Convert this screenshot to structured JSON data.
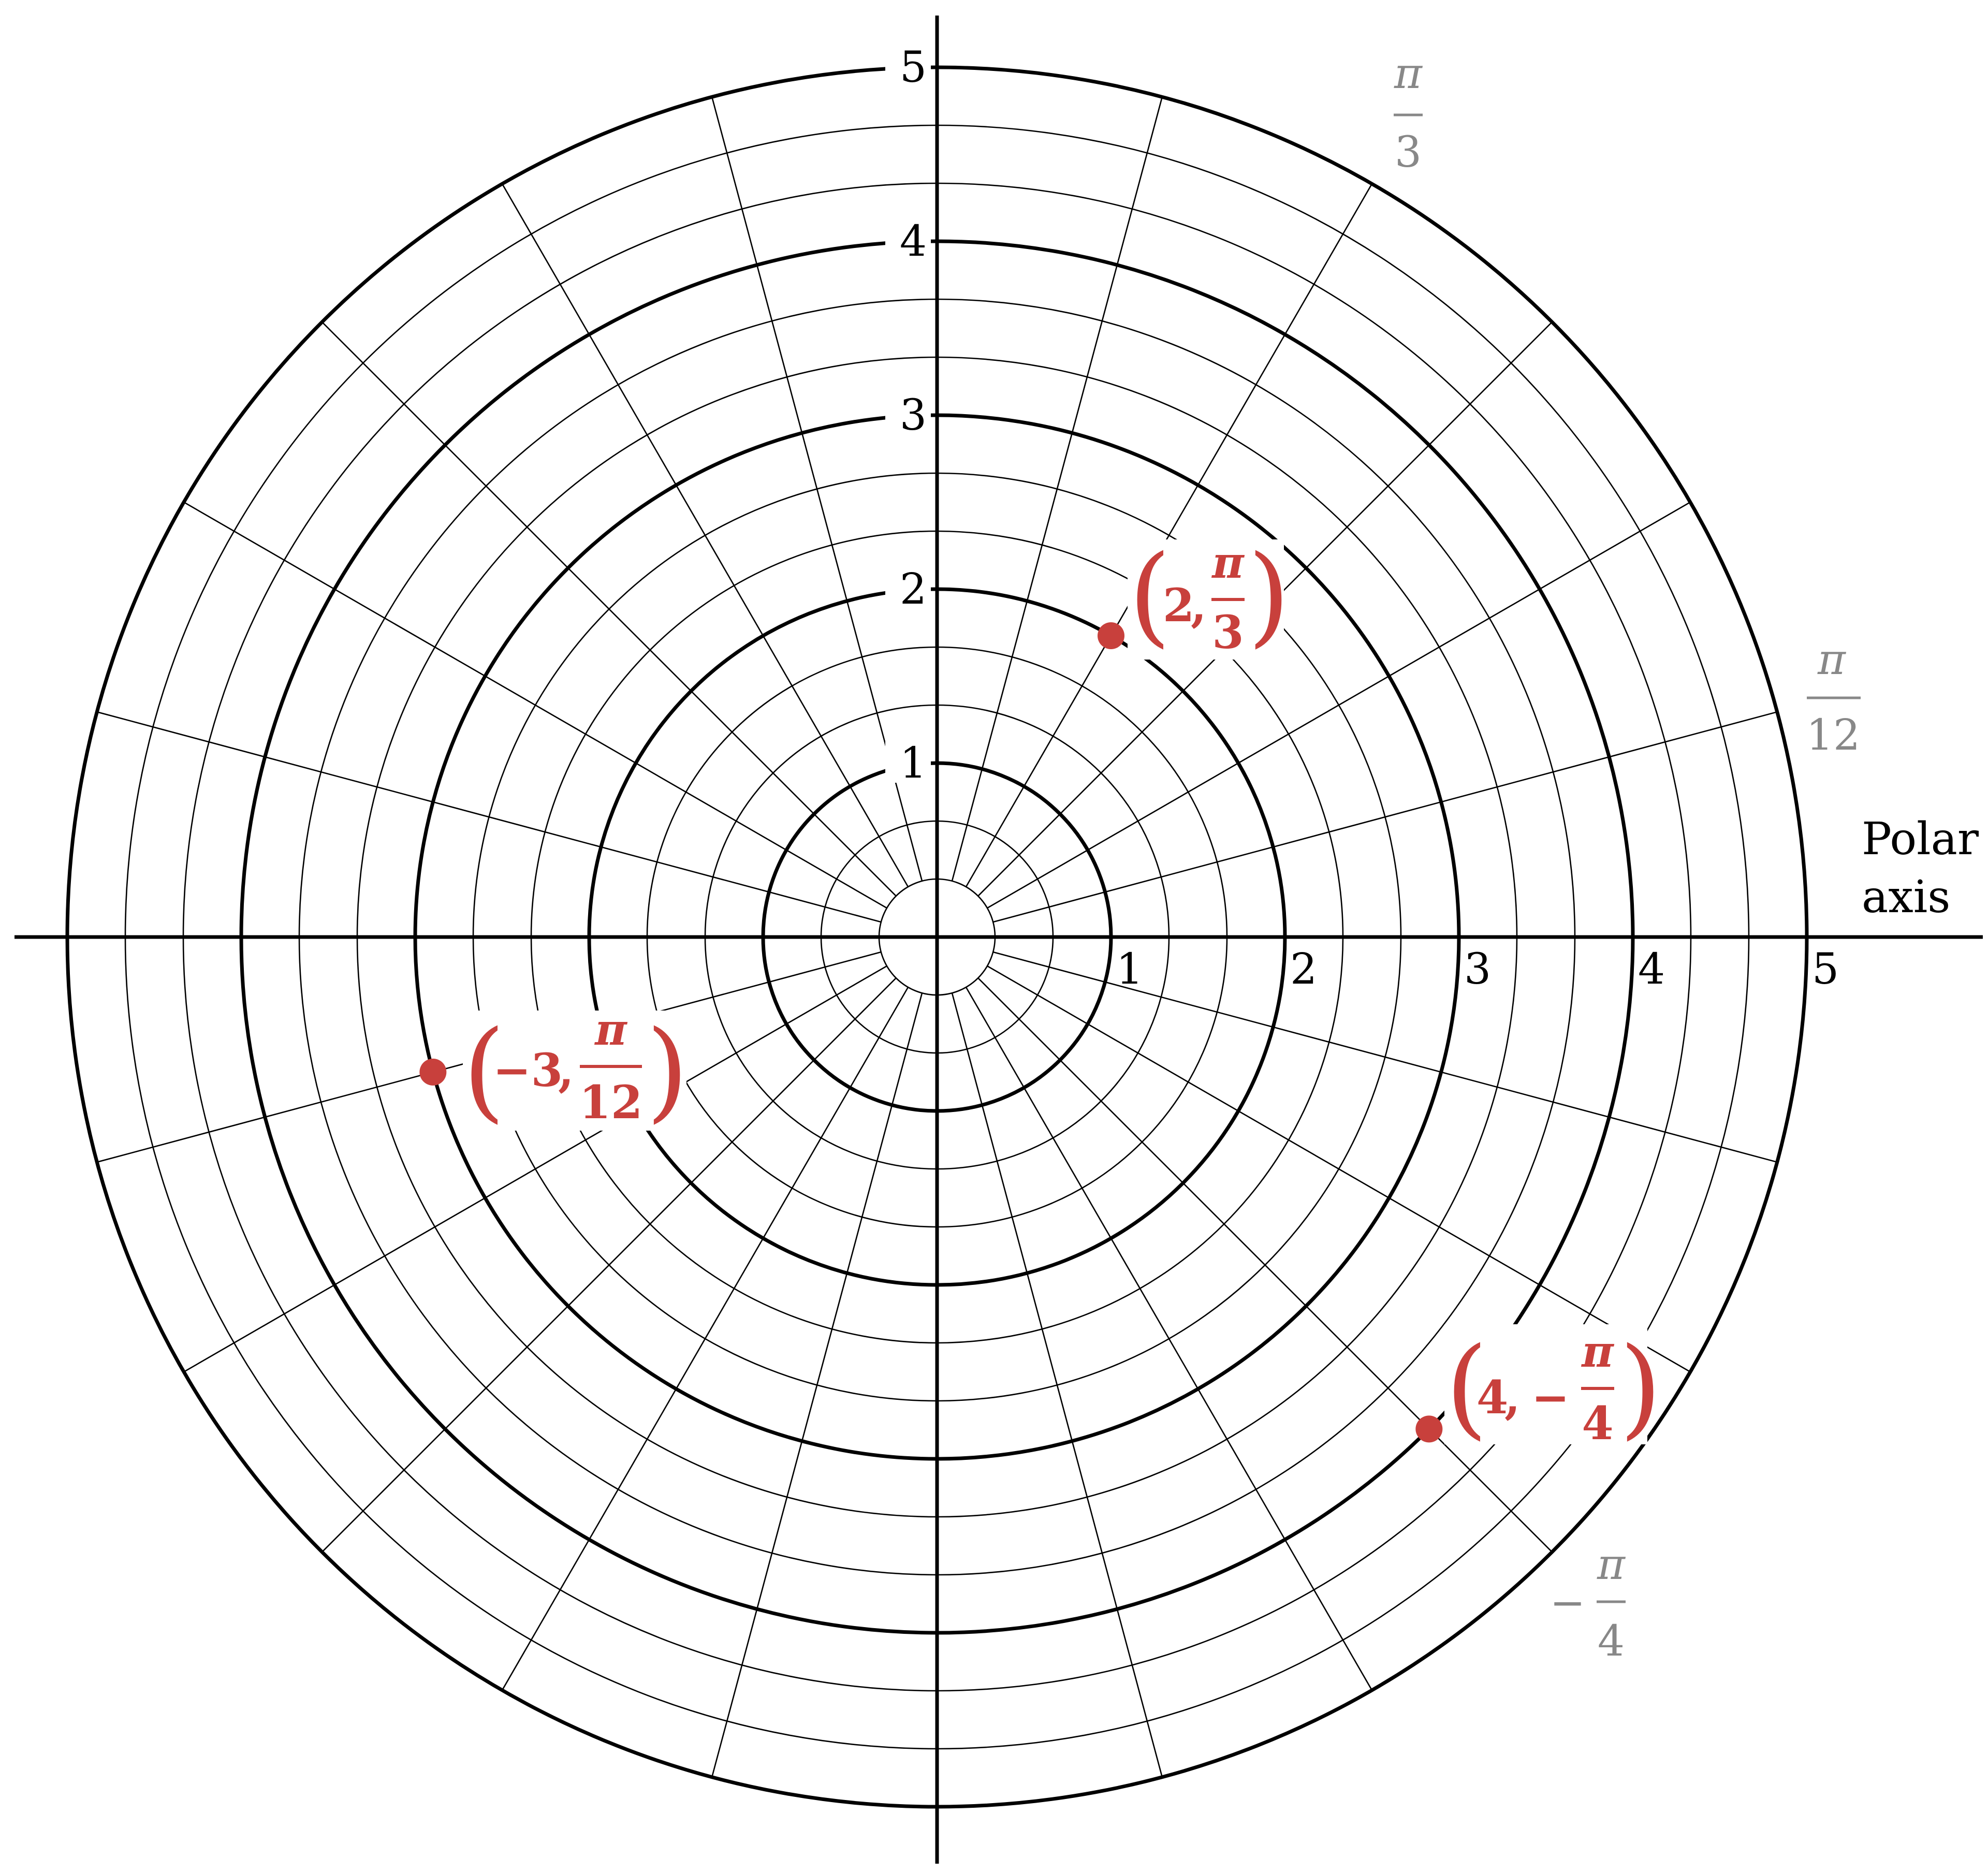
{
  "axis_label": {
    "line1": "Polar",
    "line2": "axis"
  },
  "radial_ticks": [
    "1",
    "2",
    "3",
    "4",
    "5"
  ],
  "angle_labels": [
    {
      "id": "pi-over-3",
      "sign": "",
      "numerator": "π",
      "denominator": "3"
    },
    {
      "id": "pi-over-12",
      "sign": "",
      "numerator": "π",
      "denominator": "12"
    },
    {
      "id": "minus-pi-over-4",
      "sign": "−",
      "numerator": "π",
      "denominator": "4"
    }
  ],
  "chart_data": {
    "type": "scatter",
    "coordinate_system": "polar",
    "r_max": 5,
    "r_major_step": 1,
    "r_minor_step": 0.333,
    "theta_step": "π/12",
    "grid": true,
    "points": [
      {
        "r": 2,
        "theta": "π/3",
        "label_r": "2",
        "label_sign": "",
        "label_num": "π",
        "label_den": "3"
      },
      {
        "r": -3,
        "theta": "π/12",
        "label_r": "−3",
        "label_sign": "",
        "label_num": "π",
        "label_den": "12"
      },
      {
        "r": 4,
        "theta": "−π/4",
        "label_r": "4",
        "label_sign": "−",
        "label_num": "π",
        "label_den": "4"
      }
    ],
    "point_color": "#c8403c"
  }
}
